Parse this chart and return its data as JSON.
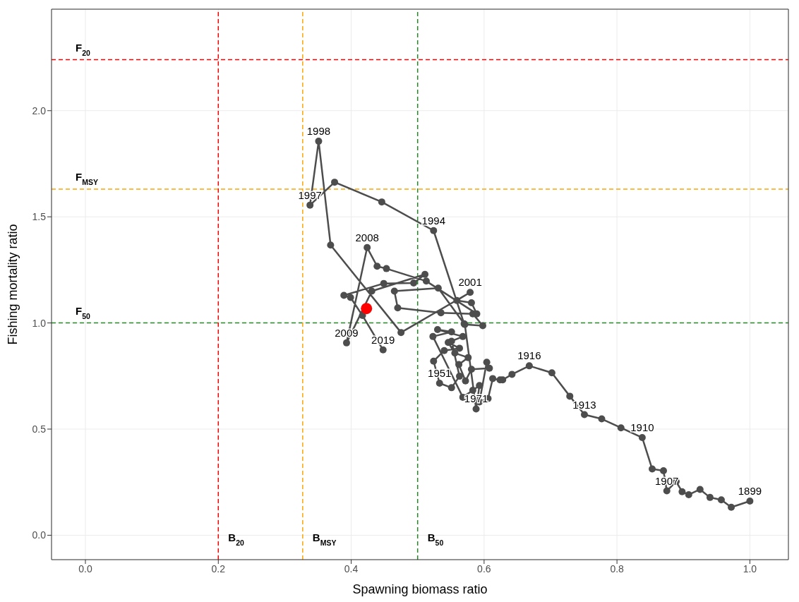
{
  "chart_data": {
    "type": "scatter",
    "xlabel": "Spawning biomass ratio",
    "ylabel": "Fishing mortality ratio",
    "xlim": [
      -0.051,
      1.058
    ],
    "ylim": [
      -0.115,
      2.478
    ],
    "xticks": [
      {
        "value": 0,
        "label": "0.0"
      },
      0.2,
      0.4,
      0.6,
      0.8,
      {
        "value": 1,
        "label": "1.0"
      }
    ],
    "yticks": [
      {
        "value": 0,
        "label": "0.0"
      },
      0.5,
      {
        "value": 1,
        "label": "1.0"
      },
      1.5,
      {
        "value": 2,
        "label": "2.0"
      }
    ],
    "grid": true,
    "marker": "circle",
    "line_style": "solid",
    "series": [
      {
        "type": "line",
        "color": "#4d4d4d",
        "x": [
          1.0,
          0.972,
          0.957,
          0.94,
          0.925,
          0.908,
          0.898,
          0.889,
          0.875,
          0.87,
          0.853,
          0.838,
          0.806,
          0.777,
          0.751,
          0.729,
          0.702,
          0.668,
          0.642,
          0.628,
          0.624,
          0.613,
          0.606,
          0.593,
          0.604,
          0.608,
          0.581,
          0.572,
          0.562,
          0.576,
          0.556,
          0.546,
          0.563,
          0.54,
          0.524,
          0.533,
          0.551,
          0.563,
          0.551,
          0.568,
          0.53,
          0.551,
          0.523,
          0.568,
          0.583,
          0.593,
          0.588,
          0.571,
          0.598,
          0.583,
          0.535,
          0.47,
          0.465,
          0.531,
          0.57,
          0.524,
          0.446,
          0.375,
          0.338,
          0.351,
          0.369,
          0.475,
          0.579,
          0.559,
          0.581,
          0.589,
          0.513,
          0.453,
          0.439,
          0.424,
          0.393,
          0.431,
          0.511,
          0.494,
          0.449,
          0.389,
          0.399,
          0.417,
          0.448
        ],
        "values": [
          0.161,
          0.132,
          0.167,
          0.178,
          0.216,
          0.191,
          0.205,
          0.253,
          0.209,
          0.304,
          0.312,
          0.46,
          0.506,
          0.548,
          0.568,
          0.655,
          0.765,
          0.798,
          0.758,
          0.732,
          0.732,
          0.738,
          0.644,
          0.628,
          0.815,
          0.787,
          0.782,
          0.727,
          0.804,
          0.837,
          0.858,
          0.908,
          0.881,
          0.87,
          0.82,
          0.716,
          0.695,
          0.749,
          0.914,
          0.936,
          0.969,
          0.958,
          0.936,
          0.65,
          0.683,
          0.705,
          0.595,
          0.993,
          0.987,
          1.043,
          1.048,
          1.071,
          1.15,
          1.164,
          0.996,
          1.435,
          1.57,
          1.663,
          1.555,
          1.856,
          1.367,
          0.955,
          1.144,
          1.106,
          1.095,
          1.043,
          1.197,
          1.256,
          1.267,
          1.355,
          0.906,
          1.15,
          1.229,
          1.188,
          1.186,
          1.13,
          1.12,
          1.035,
          0.873
        ]
      },
      {
        "color": "#ff0000",
        "x": [
          0.423
        ],
        "values": [
          1.068
        ]
      }
    ],
    "ref_lines": [
      {
        "axis": "y",
        "value": 2.24,
        "label": "F$_{20}$",
        "color": "#ff0000",
        "line_style": "dashed"
      },
      {
        "axis": "y",
        "value": 1.63,
        "label": "F$_{MSY}$",
        "color": "#ffa500",
        "line_style": "dashed"
      },
      {
        "axis": "y",
        "value": 1.0,
        "label": "F$_{50}$",
        "color": "#228b22",
        "line_style": "dashed"
      },
      {
        "axis": "x",
        "value": 0.2,
        "label": "B$_{20}$",
        "color": "#ff0000",
        "line_style": "dashed"
      },
      {
        "axis": "x",
        "value": 0.327,
        "label": "B$_{MSY}$",
        "color": "#ffa500",
        "line_style": "dashed"
      },
      {
        "axis": "x",
        "value": 0.5,
        "label": "B$_{50}$",
        "color": "#228b22",
        "line_style": "dashed"
      }
    ],
    "annotations": [
      {
        "text": "1899",
        "x": 1.0,
        "y": 0.161
      },
      {
        "text": "1907",
        "x": 0.875,
        "y": 0.209
      },
      {
        "text": "1910",
        "x": 0.838,
        "y": 0.46
      },
      {
        "text": "1913",
        "x": 0.751,
        "y": 0.568
      },
      {
        "text": "1916",
        "x": 0.668,
        "y": 0.798
      },
      {
        "text": "1951",
        "x": 0.533,
        "y": 0.716
      },
      {
        "text": "1971",
        "x": 0.588,
        "y": 0.595
      },
      {
        "text": "1994",
        "x": 0.524,
        "y": 1.435
      },
      {
        "text": "1997",
        "x": 0.338,
        "y": 1.555
      },
      {
        "text": "1998",
        "x": 0.351,
        "y": 1.856
      },
      {
        "text": "2001",
        "x": 0.579,
        "y": 1.144
      },
      {
        "text": "2008",
        "x": 0.424,
        "y": 1.355
      },
      {
        "text": "2009",
        "x": 0.393,
        "y": 0.906
      },
      {
        "text": "2019",
        "x": 0.448,
        "y": 0.873
      }
    ]
  }
}
